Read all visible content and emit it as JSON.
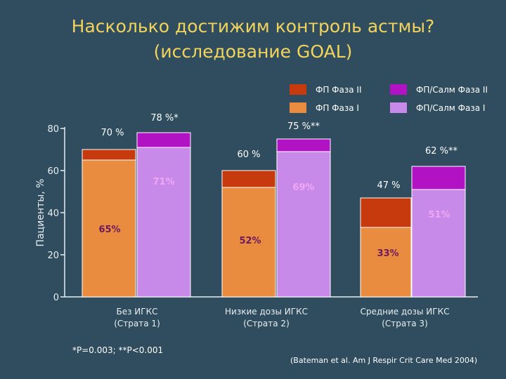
{
  "title_line1": "Насколько достижим контроль астмы?",
  "title_line2": "(исследование GOAL)",
  "footnote": "*P=0.003; **P<0.001",
  "citation": "(Bateman et al. Am J Respir Crit Care Med 2004)",
  "colors": {
    "fp_phase2": "#c63a0e",
    "fp_phase1": "#e98c40",
    "sal_phase2": "#b012c4",
    "sal_phase1": "#c88ae9",
    "background": "#2f4d5e",
    "title": "#f2d45c",
    "phase_label_fp": "#6b1a5e",
    "phase_label_sal": "#f0a8f5"
  },
  "chart_data": {
    "type": "bar",
    "title": "Насколько достижим контроль астмы? (исследование GOAL)",
    "ylabel": "Пациенты, %",
    "xlabel": "",
    "ylim": [
      0,
      80
    ],
    "yticks": [
      0,
      20,
      40,
      60,
      80
    ],
    "stacked": true,
    "grid": false,
    "legend_position": "top-right",
    "legend": [
      {
        "label": "ФП Фаза II",
        "color_key": "fp_phase2"
      },
      {
        "label": "ФП/Салм   Фаза II",
        "color_key": "sal_phase2"
      },
      {
        "label": "ФП Фаза  I",
        "color_key": "fp_phase1"
      },
      {
        "label": "ФП/Салм   Фаза I",
        "color_key": "sal_phase1"
      }
    ],
    "categories": [
      {
        "line1": "Без ИГКС",
        "line2": "(Страта 1)"
      },
      {
        "line1": "Низкие дозы ИГКС",
        "line2": "(Страта 2)"
      },
      {
        "line1": "Средние дозы ИГКС",
        "line2": "(Страта 3)"
      }
    ],
    "series": [
      {
        "name": "ФП",
        "phase1": [
          65,
          52,
          33
        ],
        "total": [
          70,
          60,
          47
        ],
        "phase1_labels": [
          "65%",
          "52%",
          "33%"
        ],
        "total_labels": [
          "70 %",
          "60 %",
          "47 %"
        ]
      },
      {
        "name": "ФП/Салм",
        "phase1": [
          71,
          69,
          51
        ],
        "total": [
          78,
          75,
          62
        ],
        "phase1_labels": [
          "71%",
          "69%",
          "51%"
        ],
        "total_labels": [
          "78 %*",
          "75 %**",
          "62 %**"
        ]
      }
    ]
  }
}
